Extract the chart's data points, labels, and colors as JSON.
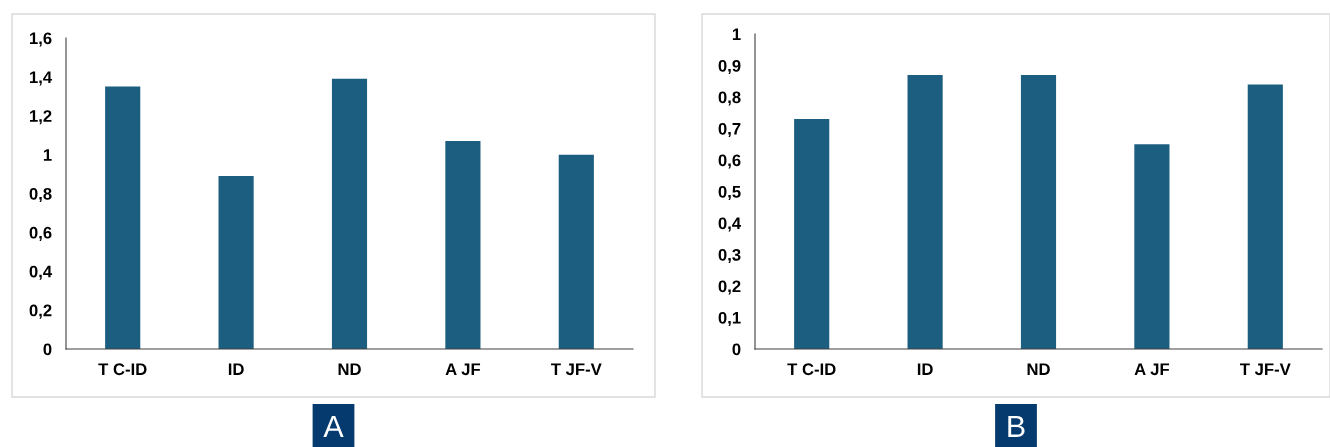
{
  "chart_data": [
    {
      "type": "bar",
      "categories": [
        "T C-ID",
        "ID",
        "ND",
        "A JF",
        "T JF-V"
      ],
      "values": [
        1.35,
        0.89,
        1.39,
        1.07,
        1.0
      ],
      "color": "#1b5e80",
      "ylim": [
        0,
        1.6
      ],
      "yticks": [
        0,
        {
          "value": 0.2,
          "label": "0,2"
        },
        {
          "value": 0.4,
          "label": "0,4"
        },
        {
          "value": 0.6,
          "label": "0,6"
        },
        {
          "value": 0.8,
          "label": "0,8"
        },
        1,
        {
          "value": 1.2,
          "label": "1,2"
        },
        {
          "value": 1.4,
          "label": "1,4"
        },
        {
          "value": 1.6,
          "label": "1,6"
        }
      ],
      "grid": false,
      "legend": false,
      "annotations": [
        "A"
      ]
    },
    {
      "type": "bar",
      "categories": [
        "T C-ID",
        "ID",
        "ND",
        "A JF",
        "T JF-V"
      ],
      "values": [
        0.73,
        0.87,
        0.87,
        0.65,
        0.84
      ],
      "color": "#1b5e80",
      "ylim": [
        0,
        1
      ],
      "yticks": [
        0,
        {
          "value": 0.1,
          "label": "0,1"
        },
        {
          "value": 0.2,
          "label": "0,2"
        },
        {
          "value": 0.3,
          "label": "0,3"
        },
        {
          "value": 0.4,
          "label": "0,4"
        },
        {
          "value": 0.5,
          "label": "0,5"
        },
        {
          "value": 0.6,
          "label": "0,6"
        },
        {
          "value": 0.7,
          "label": "0,7"
        },
        {
          "value": 0.8,
          "label": "0,8"
        },
        {
          "value": 0.9,
          "label": "0,9"
        },
        1
      ],
      "grid": false,
      "legend": false,
      "annotations": [
        "B"
      ]
    }
  ]
}
